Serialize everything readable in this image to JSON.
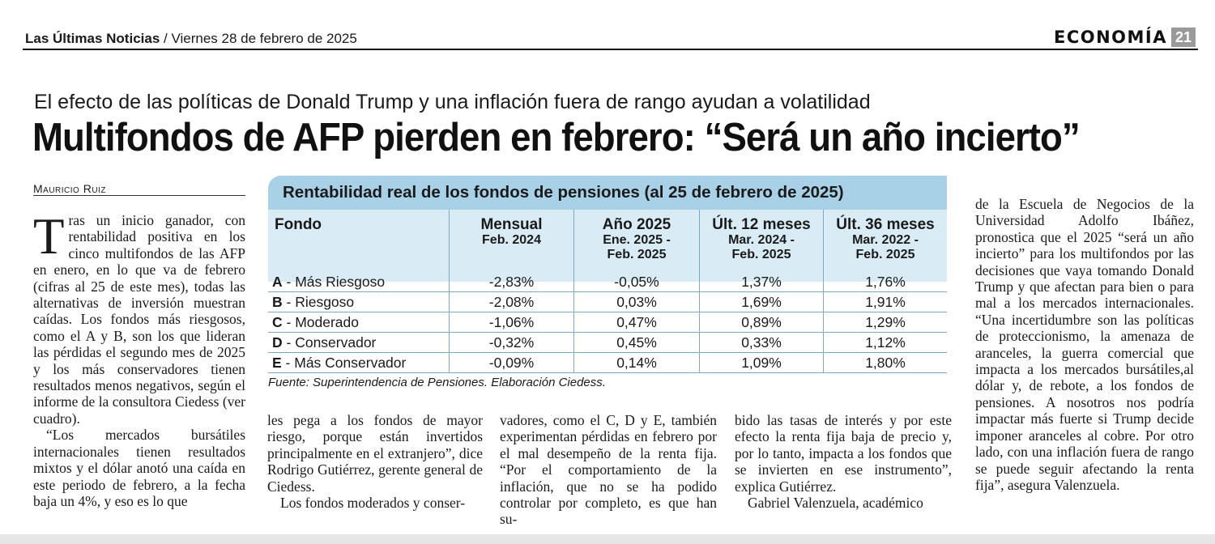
{
  "header": {
    "newspaper": "Las Últimas Noticias",
    "date": "/ Viernes 28 de febrero de 2025",
    "section": "ECONOMÍA",
    "page": "21"
  },
  "article": {
    "kicker": "El efecto de las políticas de Donald Trump y una inflación fuera de rango ayudan a volatilidad",
    "headline": "Multifondos de AFP pierden en febrero: “Será un año incierto”",
    "byline": "Mauricio Ruiz",
    "col1_dropcap": "T",
    "col1_p1": "ras un inicio ganador, con rentabilidad positiva en los cinco multifondos de las AFP en enero, en lo que va de febrero (cifras al 25 de este mes), todas las alternativas de inversión muestran caídas. Los fondos más riesgosos, como el A y B, son los que lideran las pérdidas el segundo mes de 2025 y los más conservadores tienen resultados menos negativos, según el informe de la consultora Ciedess (ver cuadro).",
    "col1_p2": "“Los mercados bursátiles internacionales tienen resultados mixtos y el dólar anotó una caída en este periodo de febrero, a la fecha baja un 4%, y eso es lo que",
    "col2_p1": "les pega a los fondos de mayor riesgo, porque están invertidos principalmente en el extranjero”, dice Rodrigo Gutiérrez, gerente general de Ciedess.",
    "col2_p2": "Los fondos moderados y conser-",
    "col3_p1": "vadores, como el C, D y E, también experimentan pérdidas en febrero por el mal desempeño de la renta fija. “Por el comportamiento de la inflación, que no se ha podido controlar por completo, es que han su-",
    "col4_p1": "bido las tasas de interés y por este efecto la renta fija baja de precio y, por lo tanto, impacta a los fondos que se invierten en ese instrumento”, explica Gutiérrez.",
    "col4_p2": "Gabriel Valenzuela, académico",
    "col5_p1": "de la Escuela de Negocios de la Universidad Adolfo Ibáñez, pronostica que el 2025 “será un año incierto” para los multifondos por las decisiones que vaya tomando Donald Trump y que afectan para bien o para mal a los mercados internacionales. “Una incertidumbre son las políticas de proteccionismo, la amenaza de aranceles, la guerra comercial que impacta a los mercados bursátiles,al dólar y, de rebote, a los fondos de pensiones. A nosotros nos podría impactar más fuerte si Trump decide imponer aranceles al cobre. Por otro lado, con una inflación fuera de rango se puede seguir afectando la renta fija”, asegura Valenzuela."
  },
  "table": {
    "title": "Rentabilidad real de los fondos de pensiones (al 25 de febrero de 2025)",
    "headers": [
      {
        "main": "Fondo",
        "sub": ""
      },
      {
        "main": "Mensual",
        "sub": "Feb. 2024"
      },
      {
        "main": "Año 2025",
        "sub": "Ene. 2025 - Feb. 2025"
      },
      {
        "main": "Últ. 12 meses",
        "sub": "Mar. 2024 - Feb. 2025"
      },
      {
        "main": "Últ. 36 meses",
        "sub": "Mar. 2022 - Feb. 2025"
      }
    ],
    "rows": [
      {
        "letter": "A",
        "name": " - Más Riesgoso",
        "values": [
          "-2,83%",
          "-0,05%",
          "1,37%",
          "1,76%"
        ]
      },
      {
        "letter": "B",
        "name": " - Riesgoso",
        "values": [
          "-2,08%",
          "0,03%",
          "1,69%",
          "1,91%"
        ]
      },
      {
        "letter": "C",
        "name": " - Moderado",
        "values": [
          "-1,06%",
          "0,47%",
          "0,89%",
          "1,29%"
        ]
      },
      {
        "letter": "D",
        "name": " - Conservador",
        "values": [
          "-0,32%",
          "0,45%",
          "0,33%",
          "1,12%"
        ]
      },
      {
        "letter": "E",
        "name": " - Más Conservador",
        "values": [
          "-0,09%",
          "0,14%",
          "1,09%",
          "1,80%"
        ]
      }
    ],
    "source": "Fuente: Superintendencia de Pensiones. Elaboración Ciedess."
  },
  "colors": {
    "table_title_bg": "#a8d0e6",
    "table_header_bg": "#d9ebf5",
    "table_lines": "#7aa9c9"
  }
}
